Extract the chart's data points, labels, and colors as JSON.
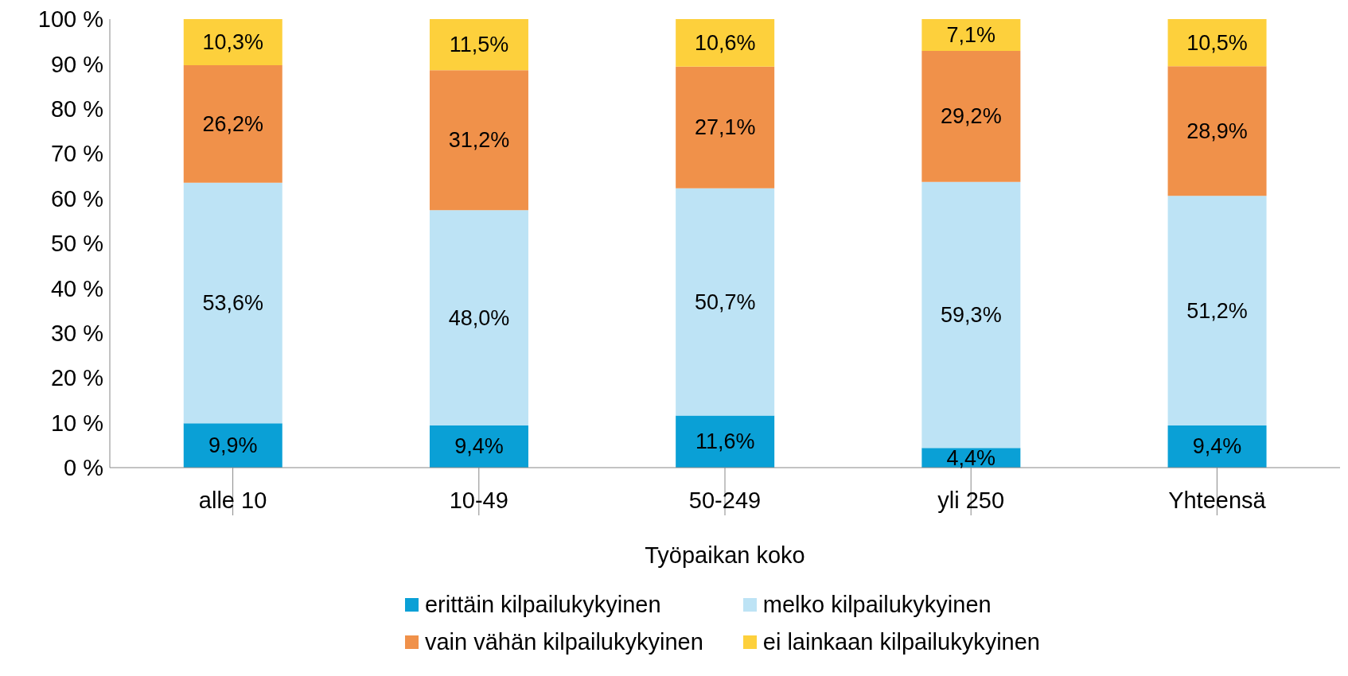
{
  "chart_data": {
    "type": "bar",
    "stacked": true,
    "xlabel": "Työpaikan koko",
    "categories": [
      "alle 10",
      "10-49",
      "50-249",
      "yli 250",
      "Yhteensä"
    ],
    "ylim": [
      0,
      100
    ],
    "yticks": [
      {
        "value": 0,
        "label": "0 %"
      },
      {
        "value": 10,
        "label": "10 %"
      },
      {
        "value": 20,
        "label": "20 %"
      },
      {
        "value": 30,
        "label": "30 %"
      },
      {
        "value": 40,
        "label": "40 %"
      },
      {
        "value": 50,
        "label": "50 %"
      },
      {
        "value": 60,
        "label": "60 %"
      },
      {
        "value": 70,
        "label": "70 %"
      },
      {
        "value": 80,
        "label": "80 %"
      },
      {
        "value": 90,
        "label": "90 %"
      },
      {
        "value": 100,
        "label": "100 %"
      }
    ],
    "grid": false,
    "legend": "bottom",
    "series": [
      {
        "name": "erittäin kilpailukykyinen",
        "color": "#0aa0d6",
        "values": [
          9.9,
          9.4,
          11.6,
          4.4,
          9.4
        ],
        "value_labels": [
          "9,9%",
          "9,4%",
          "11,6%",
          "4,4%",
          "9,4%"
        ]
      },
      {
        "name": "melko kilpailukykyinen",
        "color": "#bde3f5",
        "values": [
          53.6,
          48.0,
          50.7,
          59.3,
          51.2
        ],
        "value_labels": [
          "53,6%",
          "48,0%",
          "50,7%",
          "59,3%",
          "51,2%"
        ]
      },
      {
        "name": "vain vähän kilpailukykyinen",
        "color": "#f0914a",
        "values": [
          26.2,
          31.2,
          27.1,
          29.2,
          28.9
        ],
        "value_labels": [
          "26,2%",
          "31,2%",
          "27,1%",
          "29,2%",
          "28,9%"
        ]
      },
      {
        "name": "ei lainkaan kilpailukykyinen",
        "color": "#fdd03c",
        "values": [
          10.3,
          11.5,
          10.6,
          7.1,
          10.5
        ],
        "value_labels": [
          "10,3%",
          "11,5%",
          "10,6%",
          "7,1%",
          "10,5%"
        ]
      }
    ]
  }
}
